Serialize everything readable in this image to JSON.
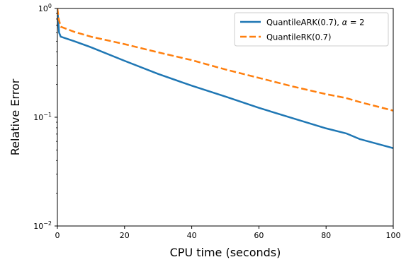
{
  "chart_data": {
    "type": "line",
    "title": "",
    "xlabel": "CPU time (seconds)",
    "ylabel": "Relative Error",
    "xlim": [
      0,
      100
    ],
    "ylim": [
      0.01,
      1
    ],
    "yscale": "log",
    "grid": false,
    "legend_position": "top-right",
    "x_ticks": [
      0,
      20,
      40,
      60,
      80,
      100
    ],
    "x_tick_labels": [
      "0",
      "20",
      "40",
      "60",
      "80",
      "100"
    ],
    "y_ticks": [
      0.01,
      0.1,
      1
    ],
    "y_tick_labels": [
      {
        "base": "10",
        "exp": "−2"
      },
      {
        "base": "10",
        "exp": "−1"
      },
      {
        "base": "10",
        "exp": "0"
      }
    ],
    "series": [
      {
        "name": "QuantileARK(0.7), α = 2",
        "name_parts": {
          "prefix": "QuantileARK(0.7), ",
          "symbol": "α",
          "suffix": " = 2"
        },
        "color": "#1f77b4",
        "style": "solid",
        "x": [
          0,
          0.5,
          1,
          5,
          10,
          20,
          30,
          40,
          50,
          60,
          70,
          80,
          86,
          90,
          100
        ],
        "y": [
          1.0,
          0.6,
          0.55,
          0.5,
          0.44,
          0.33,
          0.25,
          0.195,
          0.155,
          0.122,
          0.098,
          0.079,
          0.071,
          0.063,
          0.052
        ]
      },
      {
        "name": "QuantileRK(0.7)",
        "color": "#ff7f0e",
        "style": "dashed",
        "x": [
          0,
          0.4,
          1,
          5,
          10,
          20,
          30,
          40,
          50,
          60,
          70,
          80,
          86,
          90,
          100
        ],
        "y": [
          1.0,
          0.8,
          0.68,
          0.61,
          0.55,
          0.47,
          0.395,
          0.335,
          0.275,
          0.23,
          0.192,
          0.163,
          0.15,
          0.138,
          0.115
        ]
      }
    ]
  }
}
